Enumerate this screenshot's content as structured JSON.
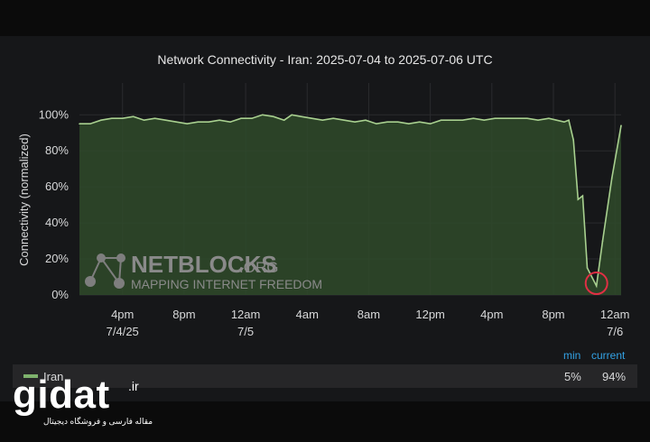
{
  "chart_data": {
    "type": "area",
    "title": "Network Connectivity - Iran: 2025-07-04 to 2025-07-06 UTC",
    "ylabel": "Connectivity (normalized)",
    "xlabel": "",
    "ylim": [
      0,
      100
    ],
    "yticks": [
      "0%",
      "20%",
      "40%",
      "60%",
      "80%",
      "100%"
    ],
    "ytick_values": [
      0,
      20,
      40,
      60,
      80,
      100
    ],
    "xticks": [
      {
        "h": 16,
        "line1": "4pm",
        "line2": "7/4/25"
      },
      {
        "h": 20,
        "line1": "8pm",
        "line2": ""
      },
      {
        "h": 24,
        "line1": "12am",
        "line2": "7/5"
      },
      {
        "h": 28,
        "line1": "4am",
        "line2": ""
      },
      {
        "h": 32,
        "line1": "8am",
        "line2": ""
      },
      {
        "h": 36,
        "line1": "12pm",
        "line2": ""
      },
      {
        "h": 40,
        "line1": "4pm",
        "line2": ""
      },
      {
        "h": 44,
        "line1": "8pm",
        "line2": ""
      },
      {
        "h": 48,
        "line1": "12am",
        "line2": "7/6"
      }
    ],
    "x_unit": "hours since 2025-07-04 00:00 UTC",
    "xlim": [
      13.2,
      48.4
    ],
    "series": [
      {
        "name": "Iran",
        "color": "#7eb26d",
        "x": [
          13.2,
          13.9,
          14.6,
          15.3,
          16.0,
          16.7,
          17.4,
          18.1,
          18.8,
          19.5,
          20.2,
          20.9,
          21.6,
          22.3,
          23.0,
          23.7,
          24.4,
          25.1,
          25.8,
          26.5,
          27.0,
          27.6,
          28.3,
          29.0,
          29.7,
          30.4,
          31.1,
          31.8,
          32.5,
          33.2,
          33.9,
          34.6,
          35.3,
          36.0,
          36.7,
          37.4,
          38.1,
          38.8,
          39.5,
          40.2,
          40.9,
          41.6,
          42.3,
          43.0,
          43.7,
          44.2,
          44.7,
          45.0,
          45.3,
          45.6,
          45.9,
          46.2,
          46.5,
          46.8,
          47.2,
          47.8,
          48.4
        ],
        "values": [
          95,
          95,
          97,
          98,
          98,
          99,
          97,
          98,
          97,
          96,
          95,
          96,
          96,
          97,
          96,
          98,
          98,
          100,
          99,
          97,
          100,
          99,
          98,
          97,
          98,
          97,
          96,
          97,
          95,
          96,
          96,
          95,
          96,
          95,
          97,
          97,
          97,
          98,
          97,
          98,
          98,
          98,
          98,
          97,
          98,
          97,
          96,
          97,
          86,
          53,
          55,
          15,
          10,
          5,
          30,
          65,
          94
        ]
      }
    ],
    "legend": {
      "placement": "bottom",
      "headers": [
        "min",
        "current"
      ],
      "rows": [
        {
          "name": "Iran",
          "min": "5%",
          "current": "94%"
        }
      ]
    },
    "grid": true,
    "annotations": [
      {
        "type": "circle",
        "x": 46.8,
        "y": 5,
        "color": "#e02f44"
      }
    ]
  },
  "watermark": {
    "name": "NETBLOCKS",
    "tld": ".ORG",
    "tagline": "MAPPING INTERNET FREEDOM"
  },
  "site_mark": {
    "name": "gidat",
    "tld": ".ir",
    "tagline": "مقاله فارسی و فروشگاه دیجیتال"
  }
}
